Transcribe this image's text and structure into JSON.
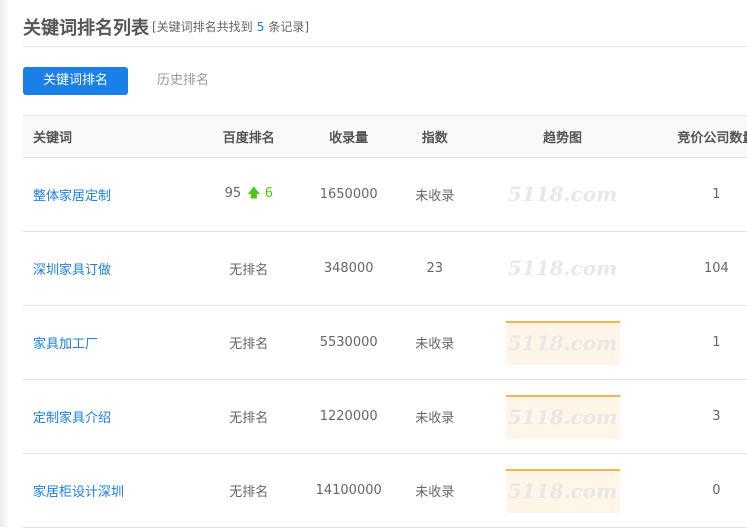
{
  "header": {
    "title": "关键词排名列表",
    "summary_prefix": "[关键词排名共找到",
    "count": "5",
    "summary_suffix": "条记录]"
  },
  "tabs": [
    {
      "label": "关键词排名",
      "active": true
    },
    {
      "label": "历史排名",
      "active": false
    }
  ],
  "table": {
    "columns": [
      "关键词",
      "百度排名",
      "收录量",
      "指数",
      "趋势图",
      "竞价公司数量"
    ],
    "watermark": "5118.com",
    "rows": [
      {
        "keyword": "整体家居定制",
        "rank": "95",
        "rank_change": "6",
        "indexed": "1650000",
        "index": "未收录",
        "trend": false,
        "bid": "1"
      },
      {
        "keyword": "深圳家具订做",
        "rank": "无排名",
        "rank_change": "",
        "indexed": "348000",
        "index": "23",
        "trend": false,
        "bid": "104"
      },
      {
        "keyword": "家具加工厂",
        "rank": "无排名",
        "rank_change": "",
        "indexed": "5530000",
        "index": "未收录",
        "trend": true,
        "bid": "1"
      },
      {
        "keyword": "定制家具介绍",
        "rank": "无排名",
        "rank_change": "",
        "indexed": "1220000",
        "index": "未收录",
        "trend": true,
        "bid": "3"
      },
      {
        "keyword": "家居柜设计深圳",
        "rank": "无排名",
        "rank_change": "",
        "indexed": "14100000",
        "index": "未收录",
        "trend": true,
        "bid": "0"
      }
    ]
  },
  "colors": {
    "accent": "#1a7fe8",
    "up": "#52c41a",
    "trend_line": "#f5b54a"
  }
}
